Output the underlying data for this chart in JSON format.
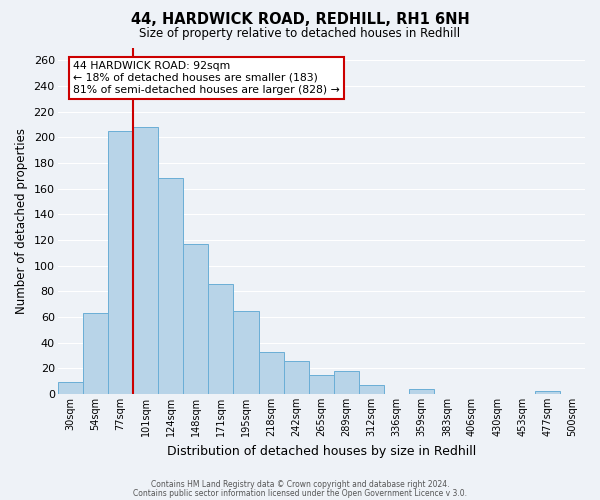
{
  "title": "44, HARDWICK ROAD, REDHILL, RH1 6NH",
  "subtitle": "Size of property relative to detached houses in Redhill",
  "xlabel": "Distribution of detached houses by size in Redhill",
  "ylabel": "Number of detached properties",
  "bar_color": "#b8d4e8",
  "bar_edge_color": "#6aaed6",
  "background_color": "#eef2f7",
  "grid_color": "#ffffff",
  "bin_labels": [
    "30sqm",
    "54sqm",
    "77sqm",
    "101sqm",
    "124sqm",
    "148sqm",
    "171sqm",
    "195sqm",
    "218sqm",
    "242sqm",
    "265sqm",
    "289sqm",
    "312sqm",
    "336sqm",
    "359sqm",
    "383sqm",
    "406sqm",
    "430sqm",
    "453sqm",
    "477sqm",
    "500sqm"
  ],
  "bar_heights": [
    9,
    63,
    205,
    208,
    168,
    117,
    86,
    65,
    33,
    26,
    15,
    18,
    7,
    0,
    4,
    0,
    0,
    0,
    0,
    2,
    0
  ],
  "ylim": [
    0,
    270
  ],
  "yticks": [
    0,
    20,
    40,
    60,
    80,
    100,
    120,
    140,
    160,
    180,
    200,
    220,
    240,
    260
  ],
  "property_line_color": "#cc0000",
  "annotation_title": "44 HARDWICK ROAD: 92sqm",
  "annotation_line1": "← 18% of detached houses are smaller (183)",
  "annotation_line2": "81% of semi-detached houses are larger (828) →",
  "annotation_box_facecolor": "#ffffff",
  "annotation_box_edgecolor": "#cc0000",
  "footer1": "Contains HM Land Registry data © Crown copyright and database right 2024.",
  "footer2": "Contains public sector information licensed under the Open Government Licence v 3.0."
}
